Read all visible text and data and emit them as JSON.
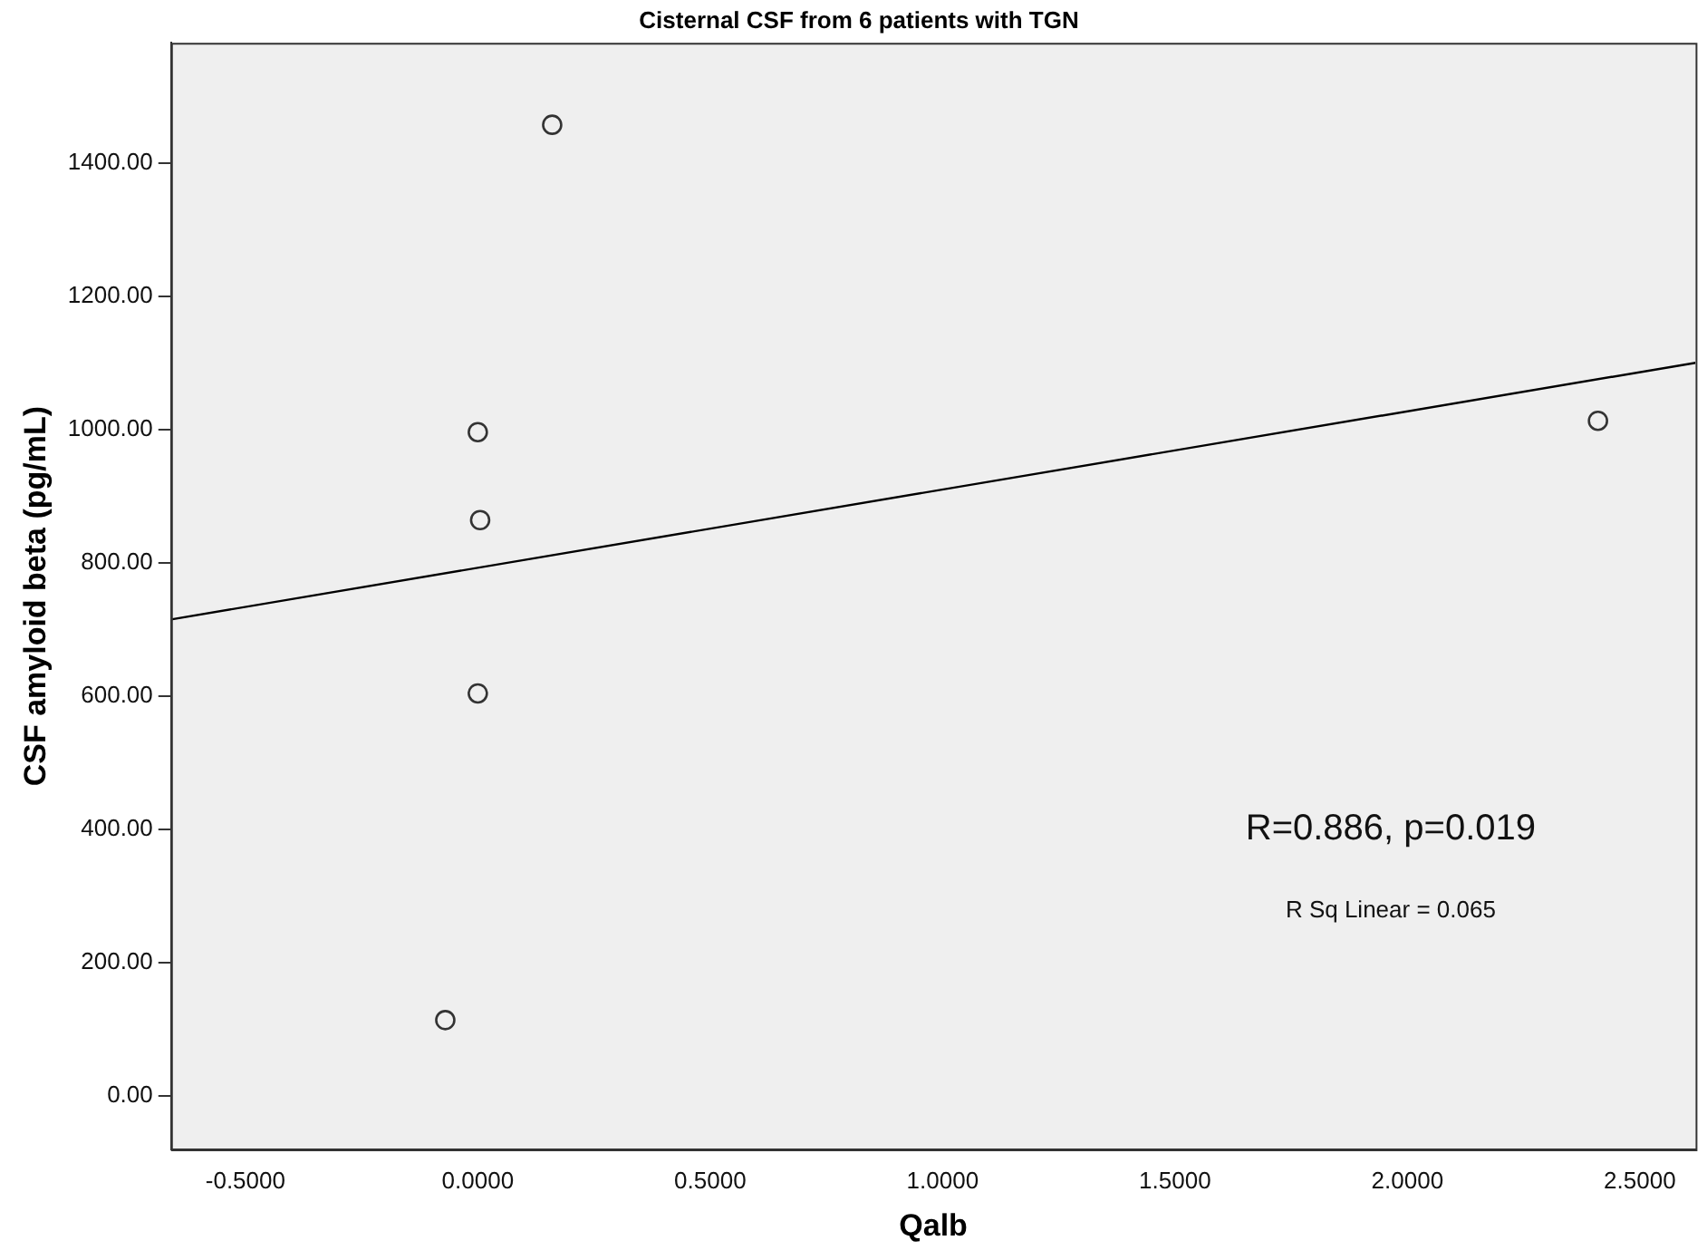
{
  "chart_data": {
    "type": "scatter",
    "title": "Cisternal CSF from 6 patients with TGN",
    "xlabel": "Qalb",
    "ylabel": "CSF amyloid beta (pg/mL)",
    "series": [
      {
        "color": "#333333",
        "marker": "circle",
        "x": [
          -0.07,
          0.16,
          0.0,
          0.005,
          0.0,
          2.41
        ],
        "values": [
          114,
          1457,
          996,
          864,
          604,
          1013
        ]
      },
      {
        "type": "line",
        "marker": "none",
        "color": "#000000",
        "x": [
          -0.66,
          2.62
        ],
        "values": [
          715,
          1100
        ]
      }
    ],
    "xlim": [
      -0.66,
      2.62
    ],
    "ylim": [
      -80,
      1580
    ],
    "xticks": [
      {
        "value": -0.5,
        "label": "-0.5000"
      },
      {
        "value": 0,
        "label": "0.0000"
      },
      {
        "value": 0.5,
        "label": "0.5000"
      },
      {
        "value": 1,
        "label": "1.0000"
      },
      {
        "value": 1.5,
        "label": "1.5000"
      },
      {
        "value": 2,
        "label": "2.0000"
      },
      {
        "value": 2.5,
        "label": "2.5000"
      }
    ],
    "yticks": [
      {
        "value": 0,
        "label": "0.00"
      },
      {
        "value": 200,
        "label": "200.00"
      },
      {
        "value": 400,
        "label": "400.00"
      },
      {
        "value": 600,
        "label": "600.00"
      },
      {
        "value": 800,
        "label": "800.00"
      },
      {
        "value": 1000,
        "label": "1000.00"
      },
      {
        "value": 1200,
        "label": "1200.00"
      },
      {
        "value": 1400,
        "label": "1400.00"
      }
    ],
    "annotations": [
      "R=0.886, p=0.019",
      "R Sq Linear = 0.065"
    ],
    "grid": false,
    "legend": false
  }
}
